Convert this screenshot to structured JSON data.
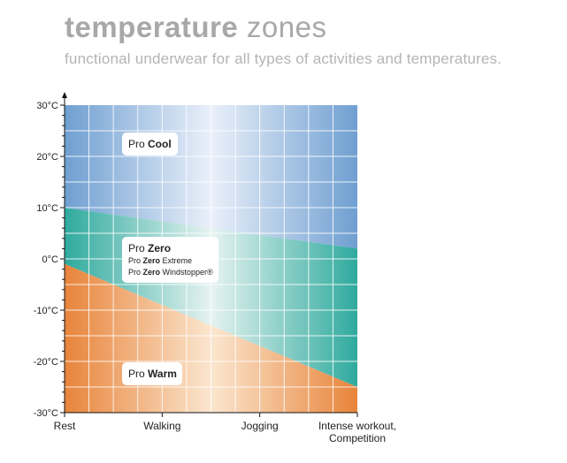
{
  "header": {
    "title_bold": "temperature",
    "title_light": "zones",
    "subtitle": "functional underwear for all types of activities and temperatures."
  },
  "chart_data": {
    "type": "area",
    "title": "temperature zones",
    "subtitle": "functional underwear for all types of activities and temperatures.",
    "x_categories": [
      "Rest",
      "Walking",
      "Jogging",
      "Intense workout, Competition"
    ],
    "x_labels": [
      [
        "Rest"
      ],
      [
        "Walking"
      ],
      [
        "Jogging"
      ],
      [
        "Intense workout,",
        "Competition"
      ]
    ],
    "x_range": [
      0,
      3
    ],
    "y_unit": "°C",
    "y_ticks": [
      30,
      20,
      10,
      0,
      -10,
      -20,
      -30
    ],
    "y_tick_labels": [
      "30°C",
      "20°C",
      "10°C",
      "0°C",
      "-10°C",
      "-20°C",
      "-30°C"
    ],
    "ylim": [
      -30,
      30
    ],
    "grid": true,
    "boundaries": [
      {
        "name": "Pro Cool / Pro Zero",
        "points": [
          [
            0,
            10
          ],
          [
            3,
            2
          ]
        ]
      },
      {
        "name": "Pro Zero / Pro Warm",
        "points": [
          [
            0,
            -1
          ],
          [
            3,
            -25
          ]
        ]
      }
    ],
    "zones": [
      {
        "name": "Pro Cool",
        "position": "top",
        "color_edge": "#6f9fd1",
        "color_center": "#eaf0fa"
      },
      {
        "name": "Pro Zero",
        "position": "middle",
        "color_edge": "#2faa9e",
        "color_center": "#e6f3f1"
      },
      {
        "name": "Pro Warm",
        "position": "bottom",
        "color_edge": "#e8843a",
        "color_center": "#fbe6cf"
      }
    ],
    "labels": {
      "cool": {
        "plain": "Pro ",
        "bold": "Cool"
      },
      "zero": {
        "plain": "Pro ",
        "bold": "Zero",
        "subs": [
          {
            "plain": "Pro ",
            "bold": "Zero",
            "rest": " Extreme"
          },
          {
            "plain": "Pro ",
            "bold": "Zero",
            "rest": " Windstopper®"
          }
        ]
      },
      "warm": {
        "plain": "Pro ",
        "bold": "Warm"
      }
    }
  }
}
